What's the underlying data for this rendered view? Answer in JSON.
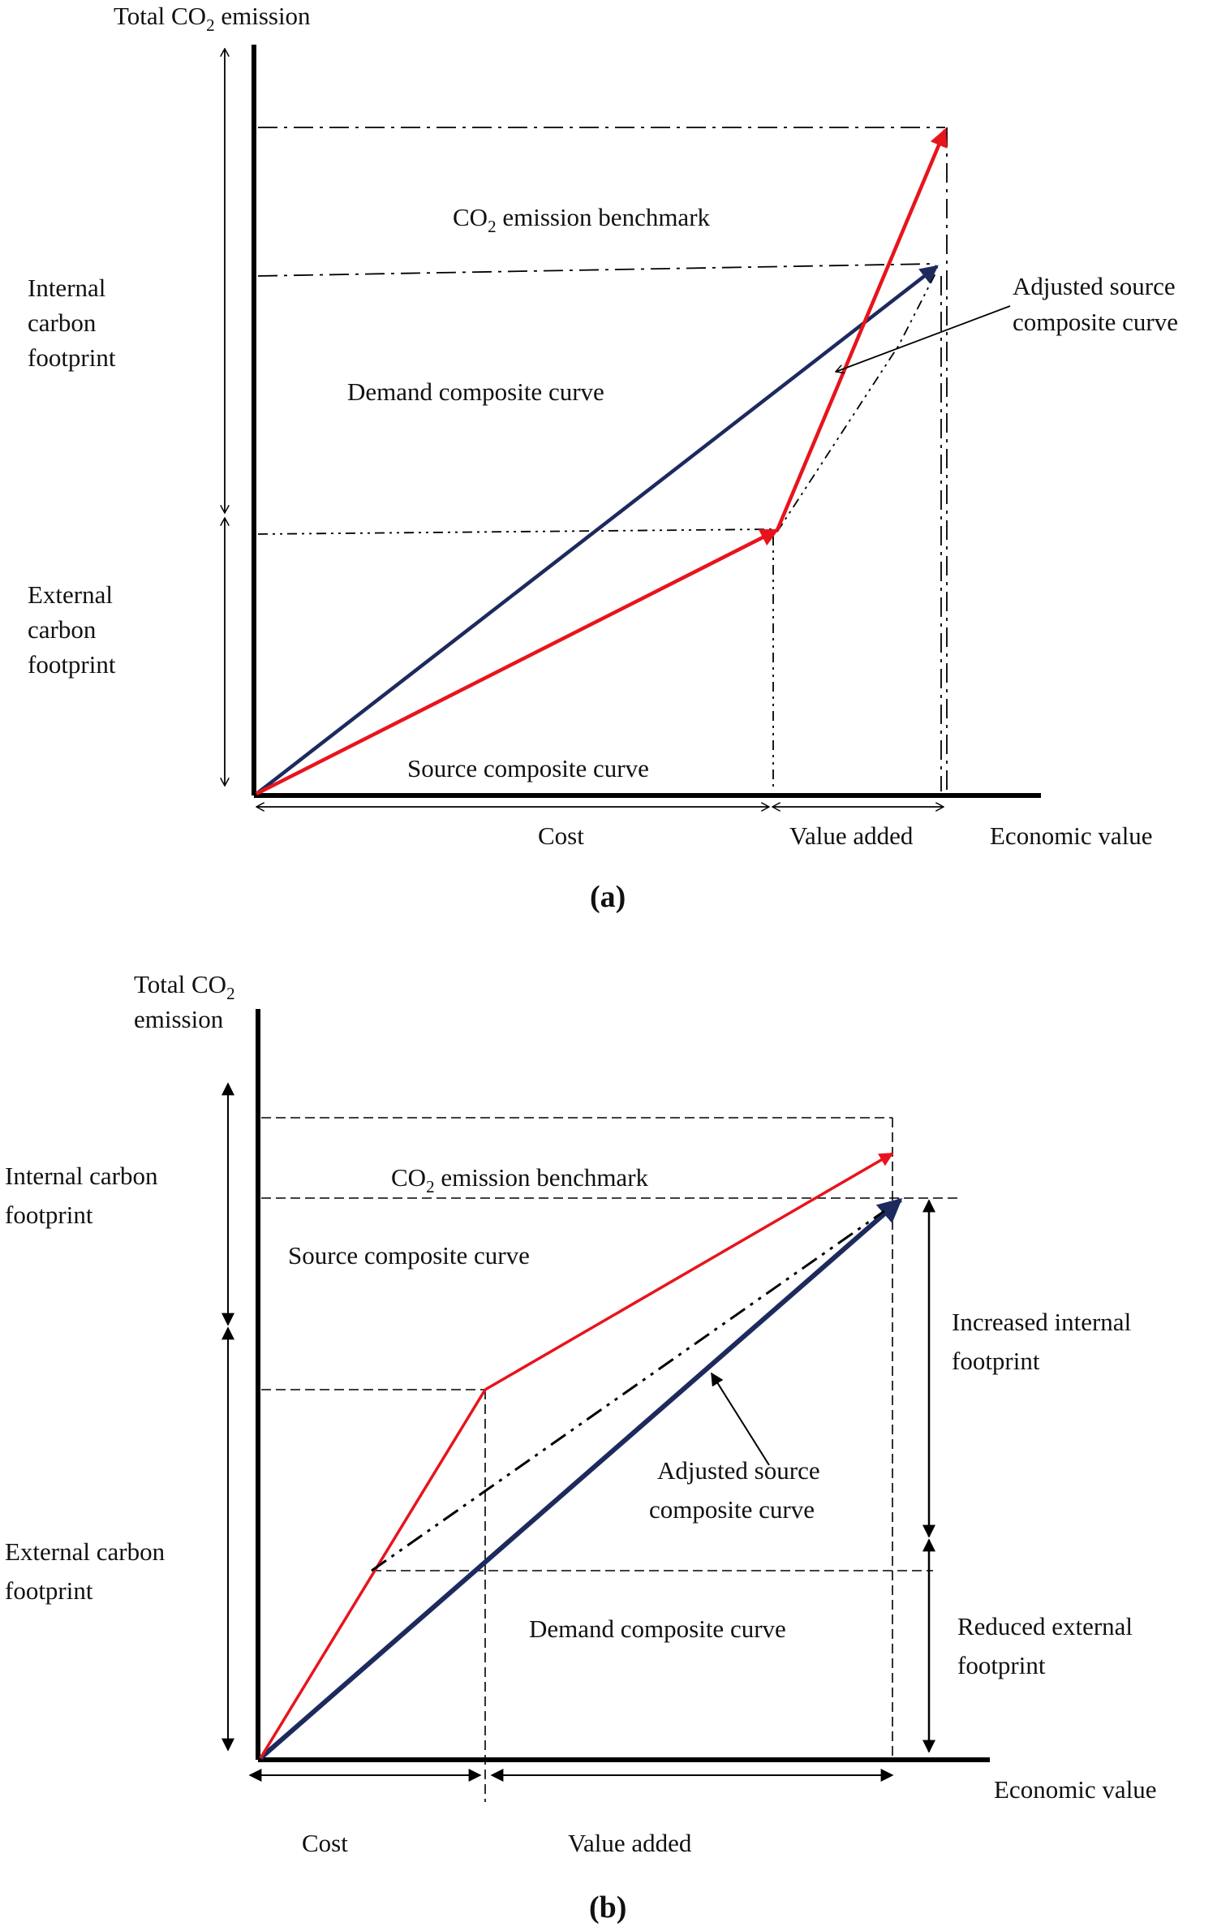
{
  "panel_a": {
    "caption": "(a)",
    "y_axis_label": "Total CO",
    "y_axis_label_sub": "2",
    "y_axis_label_tail": " emission",
    "x_axis_label": "Economic value",
    "benchmark_label": "CO",
    "benchmark_label_sub": "2",
    "benchmark_label_tail": " emission benchmark",
    "demand_curve_label": "Demand composite curve",
    "source_curve_label": "Source composite curve",
    "adjusted_label_line1": "Adjusted source",
    "adjusted_label_line2": "composite curve",
    "internal_line1": "Internal",
    "internal_line2": "carbon",
    "internal_line3": "footprint",
    "external_line1": "External",
    "external_line2": "carbon",
    "external_line3": "footprint",
    "cost_label": "Cost",
    "value_added_label": "Value added"
  },
  "panel_b": {
    "caption": "(b)",
    "y_axis_line1": "Total CO",
    "y_axis_line1_sub": "2",
    "y_axis_line2": "emission",
    "x_axis_label": "Economic value",
    "benchmark_label": "CO",
    "benchmark_label_sub": "2",
    "benchmark_label_tail": " emission benchmark",
    "source_curve_label": "Source composite curve",
    "demand_curve_label": "Demand composite curve",
    "adjusted_label_line1": "Adjusted source",
    "adjusted_label_line2": "composite curve",
    "internal_line1": "Internal carbon",
    "internal_line2": "footprint",
    "external_line1": "External carbon",
    "external_line2": "footprint",
    "increased_line1": "Increased internal",
    "increased_line2": "footprint",
    "reduced_line1": "Reduced external",
    "reduced_line2": "footprint",
    "cost_label": "Cost",
    "value_added_label": "Value added"
  },
  "colors": {
    "source_curve": "#e8141c",
    "demand_curve": "#1c2a5e",
    "axis": "#000000"
  }
}
